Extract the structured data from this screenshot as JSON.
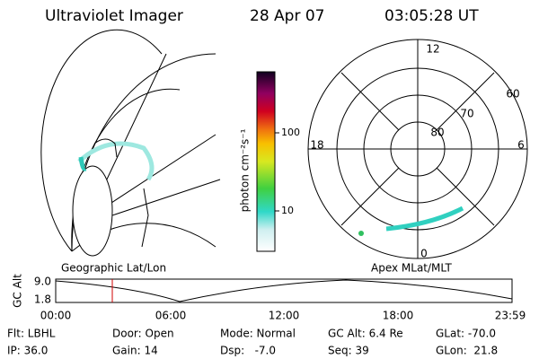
{
  "header": {
    "title": "Ultraviolet Imager",
    "date": "28 Apr 07",
    "time": "03:05:28 UT"
  },
  "colorbar": {
    "label": "photon cm⁻²s⁻¹",
    "ticks": [
      "100",
      "10"
    ]
  },
  "polar": {
    "mlt_labels": [
      "12",
      "18",
      "6",
      "0"
    ],
    "lat_labels": [
      "60",
      "70",
      "80"
    ]
  },
  "panels": {
    "left": "Geographic Lat/Lon",
    "right": "Apex MLat/MLT"
  },
  "timeline": {
    "axis_label": "GC Alt",
    "y_labels": [
      "9.0",
      "1.8"
    ],
    "x_labels": [
      "00:00",
      "06:00",
      "12:00",
      "18:00",
      "23:59"
    ]
  },
  "footer": {
    "rows": [
      [
        "Flt: LBHL",
        "Door: Open",
        "Mode: Normal",
        "GC Alt: 6.4 Re",
        "GLat: -70.0"
      ],
      [
        "IP: 36.0",
        "Gain: 14",
        "Dsp:   -7.0",
        "Seq: 39",
        "GLon:  21.8"
      ]
    ]
  }
}
